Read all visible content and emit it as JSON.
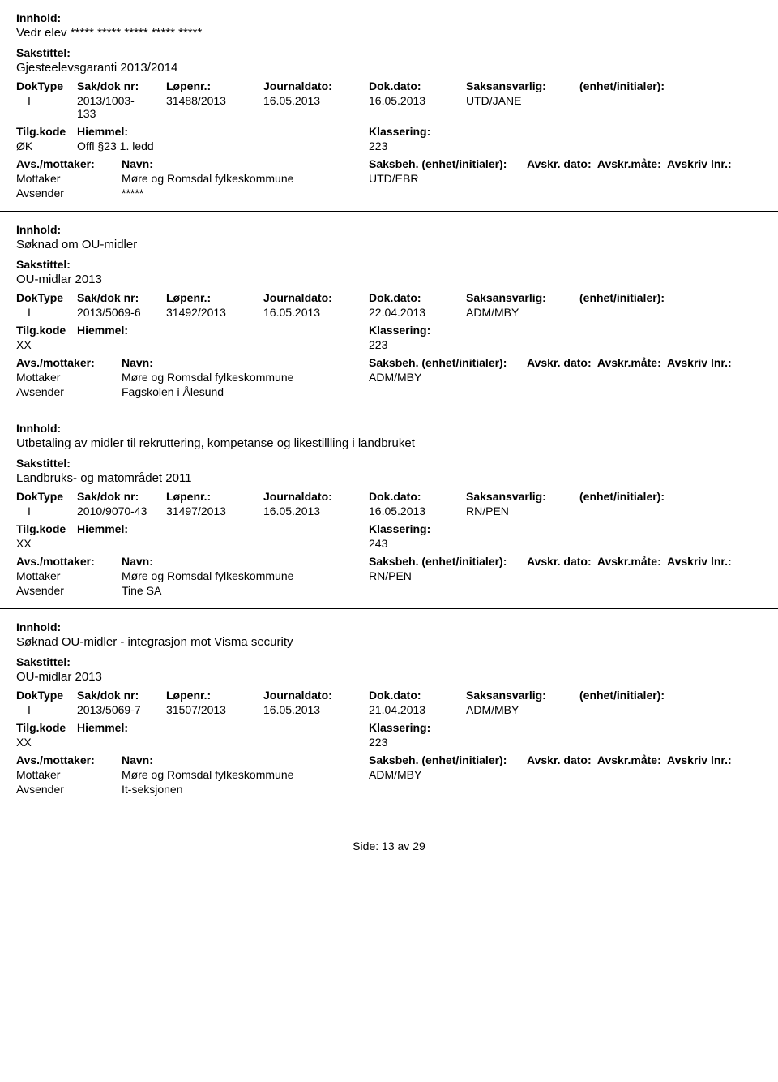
{
  "labels": {
    "innhold": "Innhold:",
    "sakstittel": "Sakstittel:",
    "doktype": "DokType",
    "sakdok": "Sak/dok nr:",
    "lopenr": "Løpenr.:",
    "journaldato": "Journaldato:",
    "dokdato": "Dok.dato:",
    "saksansvarlig": "Saksansvarlig:",
    "enhet": "(enhet/initialer):",
    "tilgkode": "Tilg.kode",
    "hjemmel": "Hiemmel:",
    "klassering": "Klassering:",
    "avsmottaker": "Avs./mottaker:",
    "navn": "Navn:",
    "saksbeh": "Saksbeh.",
    "saksbeh_enhet": "(enhet/initialer):",
    "avskrdato": "Avskr. dato:",
    "avskrmate": "Avskr.måte:",
    "avskrivlnr": "Avskriv lnr.:",
    "mottaker": "Mottaker",
    "avsender": "Avsender"
  },
  "records": [
    {
      "innhold": "Vedr elev ***** ***** ***** ***** *****",
      "sakstittel": "Gjesteelevsgaranti 2013/2014",
      "doktype": "I",
      "sakdok": "2013/1003-133",
      "sakdok_line1": "2013/1003-",
      "sakdok_line2": "133",
      "lopenr": "31488/2013",
      "journaldato": "16.05.2013",
      "dokdato": "16.05.2013",
      "saksansvarlig": "UTD/JANE",
      "tilgkode": "ØK",
      "hjemmel": "Offl §23 1. ledd",
      "klassering": "223",
      "mottaker_navn": "Møre og Romsdal fylkeskommune",
      "mottaker_saksbeh": "UTD/EBR",
      "avsender_navn": "*****"
    },
    {
      "innhold": "Søknad om OU-midler",
      "sakstittel": "OU-midlar 2013",
      "doktype": "I",
      "sakdok": "2013/5069-6",
      "lopenr": "31492/2013",
      "journaldato": "16.05.2013",
      "dokdato": "22.04.2013",
      "saksansvarlig": "ADM/MBY",
      "tilgkode": "XX",
      "hjemmel": "",
      "klassering": "223",
      "mottaker_navn": "Møre og Romsdal fylkeskommune",
      "mottaker_saksbeh": "ADM/MBY",
      "avsender_navn": "Fagskolen i Ålesund"
    },
    {
      "innhold": "Utbetaling av midler til rekruttering, kompetanse og likestillling i landbruket",
      "sakstittel": "Landbruks- og matområdet 2011",
      "doktype": "I",
      "sakdok": "2010/9070-43",
      "lopenr": "31497/2013",
      "journaldato": "16.05.2013",
      "dokdato": "16.05.2013",
      "saksansvarlig": "RN/PEN",
      "tilgkode": "XX",
      "hjemmel": "",
      "klassering": "243",
      "mottaker_navn": "Møre og Romsdal fylkeskommune",
      "mottaker_saksbeh": "RN/PEN",
      "avsender_navn": "Tine SA"
    },
    {
      "innhold": "Søknad OU-midler - integrasjon mot Visma security",
      "sakstittel": "OU-midlar 2013",
      "doktype": "I",
      "sakdok": "2013/5069-7",
      "lopenr": "31507/2013",
      "journaldato": "16.05.2013",
      "dokdato": "21.04.2013",
      "saksansvarlig": "ADM/MBY",
      "tilgkode": "XX",
      "hjemmel": "",
      "klassering": "223",
      "mottaker_navn": "Møre og Romsdal fylkeskommune",
      "mottaker_saksbeh": "ADM/MBY",
      "avsender_navn": "It-seksjonen"
    }
  ],
  "footer": {
    "side": "Side:",
    "page": "13",
    "av": "av",
    "total": "29"
  }
}
